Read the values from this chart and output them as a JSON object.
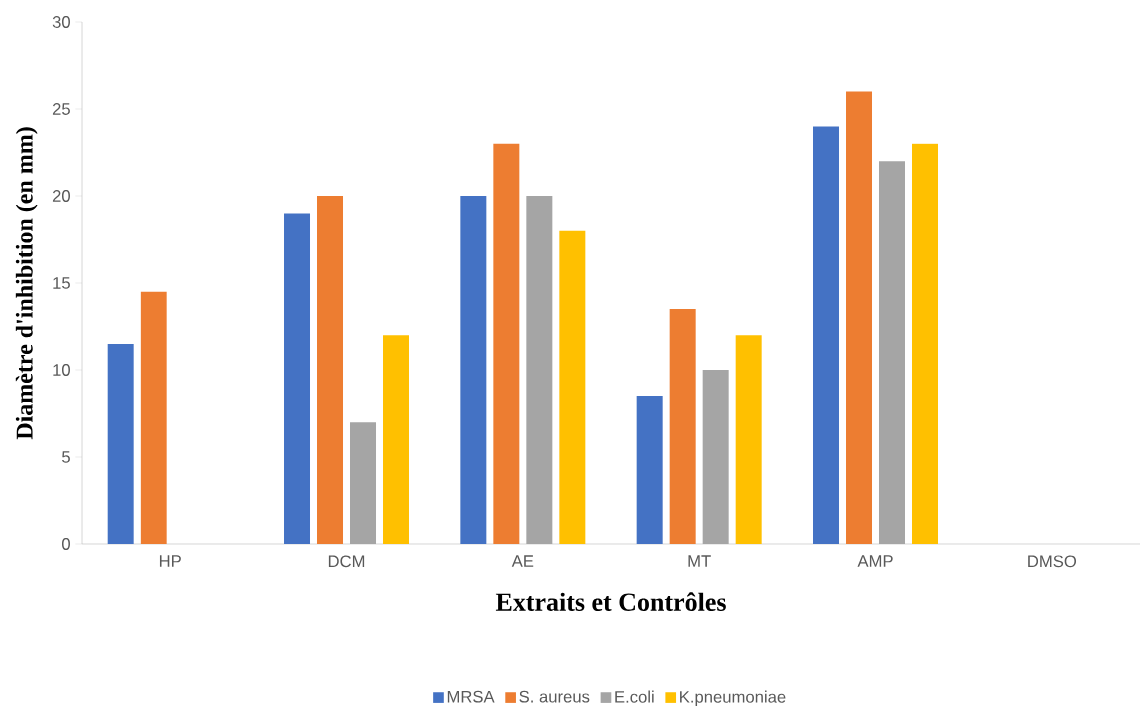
{
  "chart_data": {
    "type": "bar",
    "xlabel": "Extraits et Contrôles",
    "ylabel": "Diamètre d'inhibition (en mm)",
    "categories": [
      "HP",
      "DCM",
      "AE",
      "MT",
      "AMP",
      "DMSO"
    ],
    "series": [
      {
        "name": "MRSA",
        "color": "#4472c4",
        "values": [
          11.5,
          19,
          20,
          8.5,
          24,
          0
        ]
      },
      {
        "name": "S. aureus",
        "color": "#ed7d31",
        "values": [
          14.5,
          20,
          23,
          13.5,
          26,
          0
        ]
      },
      {
        "name": "E.coli",
        "color": "#a5a5a5",
        "values": [
          0,
          7,
          20,
          10,
          22,
          0
        ]
      },
      {
        "name": "K.pneumoniae",
        "color": "#ffc000",
        "values": [
          0,
          12,
          18,
          12,
          23,
          0
        ]
      }
    ],
    "ylim": [
      0,
      30
    ],
    "yticks": [
      0,
      5,
      10,
      15,
      20,
      25,
      30
    ],
    "grid": false,
    "legend": "bottom"
  }
}
